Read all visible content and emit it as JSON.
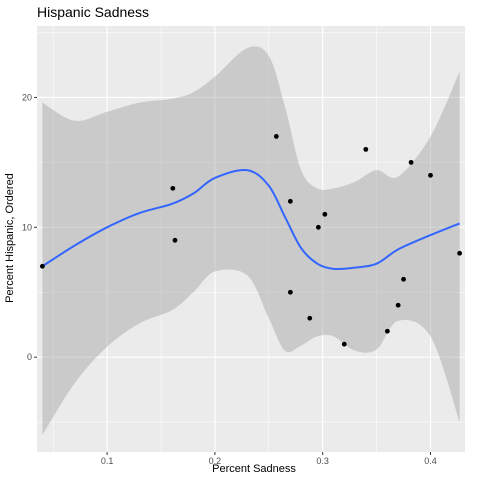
{
  "chart_data": {
    "type": "scatter",
    "title": "Hispanic Sadness",
    "xlabel": "Percent Sadness",
    "ylabel": "Percent Hispanic, Ordered",
    "xlim": [
      0.035,
      0.432
    ],
    "ylim": [
      -7.3,
      25.5
    ],
    "x_ticks": [
      0.1,
      0.2,
      0.3,
      0.4
    ],
    "x_tick_labels": [
      "0.1",
      "0.2",
      "0.3",
      "0.4"
    ],
    "y_ticks": [
      0,
      10,
      20
    ],
    "y_tick_labels": [
      "0",
      "10",
      "20"
    ],
    "grid": true,
    "legend": "none",
    "colors": {
      "panel": "#ebebeb",
      "grid": "#ffffff",
      "point": "#000000",
      "smooth_line": "#3366ff",
      "ribbon": "#999999"
    },
    "points": [
      {
        "x": 0.04,
        "y": 7
      },
      {
        "x": 0.161,
        "y": 13
      },
      {
        "x": 0.163,
        "y": 9
      },
      {
        "x": 0.257,
        "y": 17
      },
      {
        "x": 0.27,
        "y": 12
      },
      {
        "x": 0.27,
        "y": 5
      },
      {
        "x": 0.288,
        "y": 3
      },
      {
        "x": 0.296,
        "y": 10
      },
      {
        "x": 0.302,
        "y": 11
      },
      {
        "x": 0.32,
        "y": 1
      },
      {
        "x": 0.34,
        "y": 16
      },
      {
        "x": 0.36,
        "y": 2
      },
      {
        "x": 0.37,
        "y": 4
      },
      {
        "x": 0.375,
        "y": 6
      },
      {
        "x": 0.382,
        "y": 15
      },
      {
        "x": 0.4,
        "y": 14
      },
      {
        "x": 0.427,
        "y": 8
      }
    ],
    "smooth": {
      "x": [
        0.04,
        0.07,
        0.1,
        0.13,
        0.16,
        0.18,
        0.2,
        0.23,
        0.25,
        0.265,
        0.28,
        0.295,
        0.31,
        0.33,
        0.35,
        0.37,
        0.4,
        0.427
      ],
      "y": [
        7.0,
        8.6,
        10.0,
        11.1,
        11.8,
        12.6,
        13.8,
        14.4,
        13.2,
        10.8,
        8.4,
        7.2,
        6.8,
        6.9,
        7.2,
        8.3,
        9.4,
        10.3
      ],
      "lower": [
        -6.0,
        -2.0,
        0.8,
        2.6,
        3.6,
        5.0,
        6.6,
        6.3,
        3.0,
        0.5,
        0.9,
        1.6,
        1.6,
        0.5,
        0.6,
        2.8,
        1.6,
        -5.0
      ],
      "upper": [
        19.6,
        18.2,
        18.9,
        19.6,
        19.9,
        20.4,
        21.6,
        23.8,
        23.2,
        19.3,
        14.4,
        13.0,
        13.0,
        13.5,
        14.4,
        13.9,
        17.0,
        22.0
      ]
    }
  }
}
